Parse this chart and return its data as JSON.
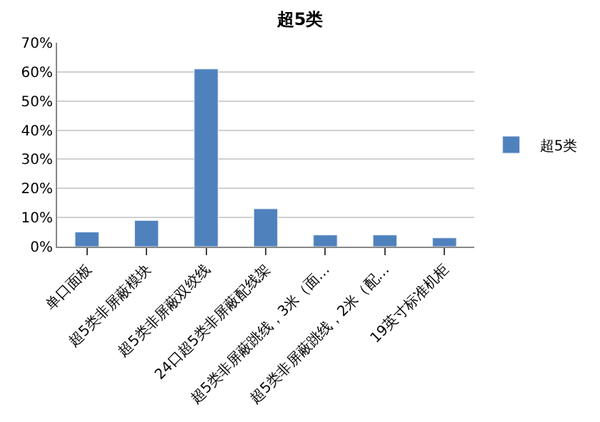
{
  "chart_data": {
    "type": "bar",
    "title": "超5类",
    "categories": [
      "单口面板",
      "超5类非屏蔽模块",
      "超5类非屏蔽双绞线",
      "24口超5类非屏蔽配线架",
      "超5类非屏蔽跳线，3米（面…",
      "超5类非屏蔽跳线，2米（配…",
      "19英寸标准机柜"
    ],
    "series": [
      {
        "name": "超5类",
        "color": "#4f81bd",
        "values": [
          5,
          9,
          61,
          13,
          4,
          4,
          3
        ]
      }
    ],
    "ylim": [
      0,
      70
    ],
    "yticks": [
      {
        "value": 0,
        "label": "0%"
      },
      {
        "value": 10,
        "label": "10%"
      },
      {
        "value": 20,
        "label": "20%"
      },
      {
        "value": 30,
        "label": "30%"
      },
      {
        "value": 40,
        "label": "40%"
      },
      {
        "value": 50,
        "label": "50%"
      },
      {
        "value": 60,
        "label": "60%"
      },
      {
        "value": 70,
        "label": "70%"
      }
    ],
    "grid": "y",
    "legend": "right"
  }
}
